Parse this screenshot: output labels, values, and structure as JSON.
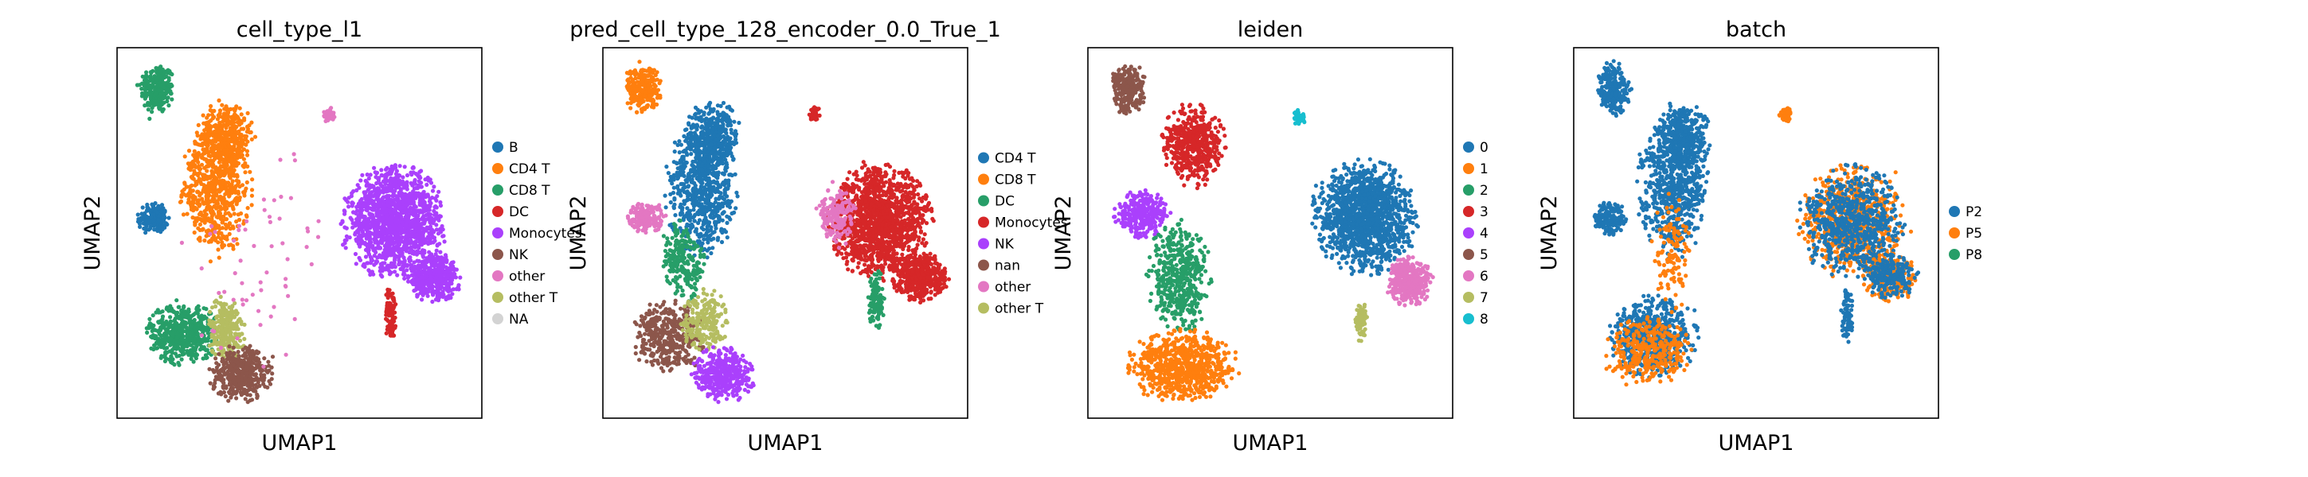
{
  "chart_data": [
    {
      "type": "scatter",
      "title": "cell_type_l1",
      "xlabel": "UMAP1",
      "ylabel": "UMAP2",
      "grid": false,
      "legend_position": "right",
      "series": [
        {
          "name": "B",
          "color": "#1f77b4"
        },
        {
          "name": "CD4 T",
          "color": "#ff7f0e"
        },
        {
          "name": "CD8 T",
          "color": "#279e68"
        },
        {
          "name": "DC",
          "color": "#d62728"
        },
        {
          "name": "Monocytes",
          "color": "#aa40fc"
        },
        {
          "name": "NK",
          "color": "#8c564b"
        },
        {
          "name": "other",
          "color": "#e377c2"
        },
        {
          "name": "other T",
          "color": "#b5bd61"
        },
        {
          "name": "NA",
          "color": "#d3d3d3"
        }
      ],
      "regions": [
        {
          "series": "CD8 T",
          "cx": 0.11,
          "cy": 0.89,
          "rx": 0.045,
          "ry": 0.065,
          "n": 260
        },
        {
          "series": "B",
          "cx": 0.1,
          "cy": 0.54,
          "rx": 0.04,
          "ry": 0.04,
          "n": 160
        },
        {
          "series": "CD4 T",
          "cx": 0.27,
          "cy": 0.62,
          "rx": 0.09,
          "ry": 0.17,
          "n": 650
        },
        {
          "series": "CD4 T",
          "cx": 0.3,
          "cy": 0.76,
          "rx": 0.07,
          "ry": 0.09,
          "n": 380
        },
        {
          "series": "CD8 T",
          "cx": 0.18,
          "cy": 0.23,
          "rx": 0.09,
          "ry": 0.08,
          "n": 500
        },
        {
          "series": "other T",
          "cx": 0.3,
          "cy": 0.24,
          "rx": 0.05,
          "ry": 0.08,
          "n": 260
        },
        {
          "series": "NK",
          "cx": 0.34,
          "cy": 0.12,
          "rx": 0.08,
          "ry": 0.07,
          "n": 420
        },
        {
          "series": "Monocytes",
          "cx": 0.76,
          "cy": 0.53,
          "rx": 0.13,
          "ry": 0.14,
          "n": 1400
        },
        {
          "series": "Monocytes",
          "cx": 0.87,
          "cy": 0.38,
          "rx": 0.07,
          "ry": 0.06,
          "n": 420
        },
        {
          "series": "DC",
          "cx": 0.75,
          "cy": 0.28,
          "rx": 0.015,
          "ry": 0.07,
          "n": 90
        },
        {
          "series": "other",
          "cx": 0.58,
          "cy": 0.82,
          "rx": 0.015,
          "ry": 0.02,
          "n": 40
        },
        {
          "series": "other",
          "cx": 0.4,
          "cy": 0.4,
          "rx": 0.22,
          "ry": 0.3,
          "n": 60
        }
      ]
    },
    {
      "type": "scatter",
      "title": "pred_cell_type_128_encoder_0.0_True_1",
      "xlabel": "UMAP1",
      "ylabel": "UMAP2",
      "grid": false,
      "legend_position": "right",
      "series": [
        {
          "name": "CD4 T",
          "color": "#1f77b4"
        },
        {
          "name": "CD8 T",
          "color": "#ff7f0e"
        },
        {
          "name": "DC",
          "color": "#279e68"
        },
        {
          "name": "Monocytes",
          "color": "#d62728"
        },
        {
          "name": "NK",
          "color": "#aa40fc"
        },
        {
          "name": "nan",
          "color": "#8c564b"
        },
        {
          "name": "other",
          "color": "#e377c2"
        },
        {
          "name": "other T",
          "color": "#b5bd61"
        }
      ],
      "regions": [
        {
          "series": "CD8 T",
          "cx": 0.11,
          "cy": 0.89,
          "rx": 0.045,
          "ry": 0.065,
          "n": 260
        },
        {
          "series": "CD4 T",
          "cx": 0.27,
          "cy": 0.62,
          "rx": 0.09,
          "ry": 0.17,
          "n": 650
        },
        {
          "series": "CD4 T",
          "cx": 0.3,
          "cy": 0.76,
          "rx": 0.07,
          "ry": 0.09,
          "n": 380
        },
        {
          "series": "other",
          "cx": 0.12,
          "cy": 0.54,
          "rx": 0.05,
          "ry": 0.04,
          "n": 180
        },
        {
          "series": "DC",
          "cx": 0.22,
          "cy": 0.42,
          "rx": 0.06,
          "ry": 0.1,
          "n": 220
        },
        {
          "series": "nan",
          "cx": 0.18,
          "cy": 0.22,
          "rx": 0.09,
          "ry": 0.09,
          "n": 380
        },
        {
          "series": "other T",
          "cx": 0.28,
          "cy": 0.26,
          "rx": 0.06,
          "ry": 0.08,
          "n": 220
        },
        {
          "series": "NK",
          "cx": 0.33,
          "cy": 0.12,
          "rx": 0.08,
          "ry": 0.07,
          "n": 380
        },
        {
          "series": "Monocytes",
          "cx": 0.76,
          "cy": 0.53,
          "rx": 0.13,
          "ry": 0.14,
          "n": 1400
        },
        {
          "series": "Monocytes",
          "cx": 0.87,
          "cy": 0.38,
          "rx": 0.07,
          "ry": 0.06,
          "n": 420
        },
        {
          "series": "other",
          "cx": 0.64,
          "cy": 0.55,
          "rx": 0.05,
          "ry": 0.08,
          "n": 160
        },
        {
          "series": "DC",
          "cx": 0.75,
          "cy": 0.32,
          "rx": 0.02,
          "ry": 0.08,
          "n": 110
        },
        {
          "series": "Monocytes",
          "cx": 0.58,
          "cy": 0.82,
          "rx": 0.015,
          "ry": 0.02,
          "n": 40
        }
      ]
    },
    {
      "type": "scatter",
      "title": "leiden",
      "xlabel": "UMAP1",
      "ylabel": "UMAP2",
      "grid": false,
      "legend_position": "right",
      "series": [
        {
          "name": "0",
          "color": "#1f77b4"
        },
        {
          "name": "1",
          "color": "#ff7f0e"
        },
        {
          "name": "2",
          "color": "#279e68"
        },
        {
          "name": "3",
          "color": "#d62728"
        },
        {
          "name": "4",
          "color": "#aa40fc"
        },
        {
          "name": "5",
          "color": "#8c564b"
        },
        {
          "name": "6",
          "color": "#e377c2"
        },
        {
          "name": "7",
          "color": "#b5bd61"
        },
        {
          "name": "8",
          "color": "#17becf"
        }
      ],
      "regions": [
        {
          "series": "5",
          "cx": 0.11,
          "cy": 0.89,
          "rx": 0.045,
          "ry": 0.065,
          "n": 260
        },
        {
          "series": "3",
          "cx": 0.29,
          "cy": 0.74,
          "rx": 0.08,
          "ry": 0.1,
          "n": 480
        },
        {
          "series": "4",
          "cx": 0.15,
          "cy": 0.55,
          "rx": 0.07,
          "ry": 0.06,
          "n": 300
        },
        {
          "series": "2",
          "cx": 0.25,
          "cy": 0.38,
          "rx": 0.08,
          "ry": 0.14,
          "n": 480
        },
        {
          "series": "1",
          "cx": 0.26,
          "cy": 0.14,
          "rx": 0.14,
          "ry": 0.09,
          "n": 750
        },
        {
          "series": "0",
          "cx": 0.76,
          "cy": 0.54,
          "rx": 0.13,
          "ry": 0.14,
          "n": 1400
        },
        {
          "series": "6",
          "cx": 0.88,
          "cy": 0.37,
          "rx": 0.06,
          "ry": 0.06,
          "n": 380
        },
        {
          "series": "7",
          "cx": 0.75,
          "cy": 0.26,
          "rx": 0.015,
          "ry": 0.05,
          "n": 80
        },
        {
          "series": "8",
          "cx": 0.58,
          "cy": 0.81,
          "rx": 0.015,
          "ry": 0.02,
          "n": 40
        }
      ]
    },
    {
      "type": "scatter",
      "title": "batch",
      "xlabel": "UMAP1",
      "ylabel": "UMAP2",
      "grid": false,
      "legend_position": "right",
      "series": [
        {
          "name": "P2",
          "color": "#1f77b4"
        },
        {
          "name": "P5",
          "color": "#ff7f0e"
        },
        {
          "name": "P8",
          "color": "#279e68"
        }
      ],
      "regions": [
        {
          "series": "P2",
          "cx": 0.11,
          "cy": 0.89,
          "rx": 0.045,
          "ry": 0.065,
          "n": 260
        },
        {
          "series": "P2",
          "cx": 0.1,
          "cy": 0.54,
          "rx": 0.04,
          "ry": 0.04,
          "n": 160
        },
        {
          "series": "P2",
          "cx": 0.27,
          "cy": 0.62,
          "rx": 0.09,
          "ry": 0.17,
          "n": 650
        },
        {
          "series": "P2",
          "cx": 0.3,
          "cy": 0.76,
          "rx": 0.07,
          "ry": 0.09,
          "n": 380
        },
        {
          "series": "P2",
          "cx": 0.22,
          "cy": 0.22,
          "rx": 0.11,
          "ry": 0.1,
          "n": 600
        },
        {
          "series": "P5",
          "cx": 0.2,
          "cy": 0.18,
          "rx": 0.11,
          "ry": 0.09,
          "n": 320
        },
        {
          "series": "P5",
          "cx": 0.27,
          "cy": 0.45,
          "rx": 0.05,
          "ry": 0.15,
          "n": 120
        },
        {
          "series": "P5",
          "cx": 0.76,
          "cy": 0.53,
          "rx": 0.13,
          "ry": 0.14,
          "n": 700
        },
        {
          "series": "P2",
          "cx": 0.76,
          "cy": 0.53,
          "rx": 0.13,
          "ry": 0.14,
          "n": 650
        },
        {
          "series": "P5",
          "cx": 0.87,
          "cy": 0.38,
          "rx": 0.07,
          "ry": 0.06,
          "n": 220
        },
        {
          "series": "P2",
          "cx": 0.87,
          "cy": 0.38,
          "rx": 0.07,
          "ry": 0.06,
          "n": 200
        },
        {
          "series": "P2",
          "cx": 0.75,
          "cy": 0.28,
          "rx": 0.015,
          "ry": 0.07,
          "n": 80
        },
        {
          "series": "P5",
          "cx": 0.58,
          "cy": 0.82,
          "rx": 0.015,
          "ry": 0.02,
          "n": 40
        }
      ]
    }
  ]
}
